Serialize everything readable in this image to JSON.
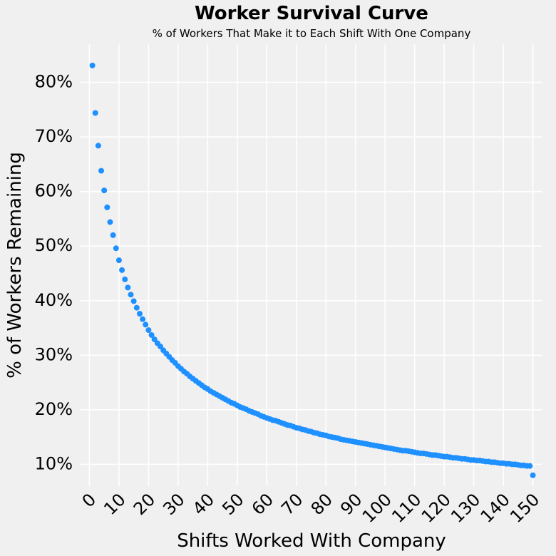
{
  "chart_data": {
    "type": "scatter",
    "title": "Worker Survival Curve",
    "subtitle": "% of Workers That Make it to Each Shift With One Company",
    "xlabel": "Shifts Worked With Company",
    "ylabel": "% of Workers Remaining",
    "xlim": [
      -3,
      153
    ],
    "ylim": [
      6,
      87
    ],
    "x_ticks": [
      0,
      10,
      20,
      30,
      40,
      50,
      60,
      70,
      80,
      90,
      100,
      110,
      120,
      130,
      140,
      150
    ],
    "y_ticks": [
      10,
      20,
      30,
      40,
      50,
      60,
      70,
      80
    ],
    "y_tick_format": "percent",
    "grid": true,
    "colors": {
      "points": "#1e90ff",
      "background": "#f0f0f0",
      "grid": "#ffffff"
    },
    "series": [
      {
        "x": [
          1,
          2,
          3,
          4,
          5,
          6,
          7,
          8,
          9,
          10,
          11,
          12,
          13,
          14,
          15,
          16,
          17,
          18,
          19,
          20,
          21,
          22,
          23,
          24,
          25,
          26,
          27,
          28,
          29,
          30,
          31,
          32,
          33,
          34,
          35,
          36,
          37,
          38,
          39,
          40,
          41,
          42,
          43,
          44,
          45,
          46,
          47,
          48,
          49,
          50,
          51,
          52,
          53,
          54,
          55,
          56,
          57,
          58,
          59,
          60,
          61,
          62,
          63,
          64,
          65,
          66,
          67,
          68,
          69,
          70,
          71,
          72,
          73,
          74,
          75,
          76,
          77,
          78,
          79,
          80,
          81,
          82,
          83,
          84,
          85,
          86,
          87,
          88,
          89,
          90,
          91,
          92,
          93,
          94,
          95,
          96,
          97,
          98,
          99,
          100,
          101,
          102,
          103,
          104,
          105,
          106,
          107,
          108,
          109,
          110,
          111,
          112,
          113,
          114,
          115,
          116,
          117,
          118,
          119,
          120,
          121,
          122,
          123,
          124,
          125,
          126,
          127,
          128,
          129,
          130,
          131,
          132,
          133,
          134,
          135,
          136,
          137,
          138,
          139,
          140,
          141,
          142,
          143,
          144,
          145,
          146,
          147,
          148,
          149,
          150
        ],
        "y": [
          83.1,
          74.4,
          68.4,
          63.8,
          60.2,
          57.1,
          54.4,
          52.0,
          49.6,
          47.4,
          45.6,
          43.9,
          42.4,
          41.1,
          39.9,
          38.7,
          37.6,
          36.6,
          35.6,
          34.6,
          33.7,
          32.9,
          32.2,
          31.6,
          30.9,
          30.3,
          29.7,
          29.1,
          28.6,
          28.0,
          27.5,
          27.0,
          26.6,
          26.1,
          25.7,
          25.3,
          24.9,
          24.5,
          24.1,
          23.8,
          23.4,
          23.1,
          22.8,
          22.5,
          22.2,
          21.9,
          21.6,
          21.3,
          21.1,
          20.8,
          20.5,
          20.3,
          20.1,
          19.8,
          19.6,
          19.4,
          19.2,
          18.9,
          18.7,
          18.5,
          18.3,
          18.1,
          18.0,
          17.8,
          17.6,
          17.4,
          17.2,
          17.1,
          16.9,
          16.7,
          16.6,
          16.4,
          16.3,
          16.1,
          16.0,
          15.8,
          15.7,
          15.5,
          15.4,
          15.3,
          15.1,
          15.0,
          14.9,
          14.8,
          14.6,
          14.5,
          14.4,
          14.3,
          14.2,
          14.1,
          14.0,
          13.9,
          13.8,
          13.7,
          13.6,
          13.5,
          13.4,
          13.3,
          13.2,
          13.1,
          13.0,
          12.9,
          12.8,
          12.7,
          12.6,
          12.5,
          12.5,
          12.4,
          12.3,
          12.2,
          12.1,
          12.0,
          12.0,
          11.9,
          11.8,
          11.7,
          11.7,
          11.6,
          11.5,
          11.4,
          11.4,
          11.3,
          11.2,
          11.2,
          11.1,
          11.0,
          11.0,
          10.9,
          10.8,
          10.8,
          10.7,
          10.7,
          10.6,
          10.5,
          10.5,
          10.4,
          10.4,
          10.3,
          10.2,
          10.2,
          10.1,
          10.1,
          10.0,
          10.0,
          9.9,
          9.8,
          9.8,
          9.7,
          9.7,
          8.0
        ]
      }
    ]
  }
}
